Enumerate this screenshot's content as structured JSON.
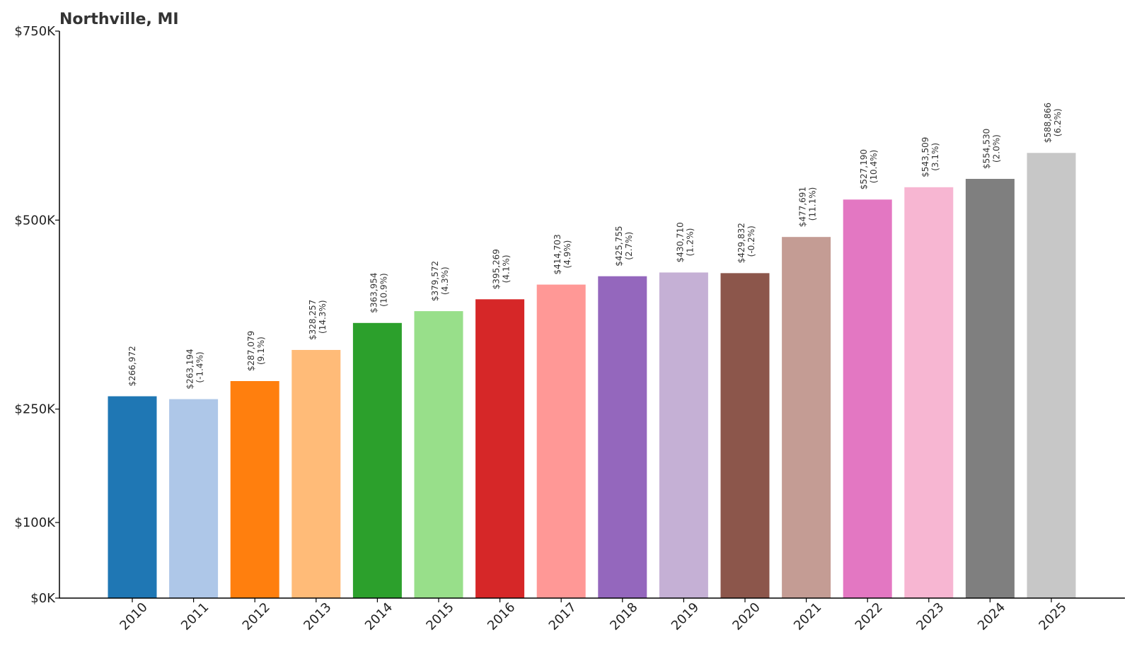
{
  "chart_data": {
    "type": "bar",
    "title": "Northville, MI",
    "xlabel": "",
    "ylabel": "",
    "categories": [
      "2010",
      "2011",
      "2012",
      "2013",
      "2014",
      "2015",
      "2016",
      "2017",
      "2018",
      "2019",
      "2020",
      "2021",
      "2022",
      "2023",
      "2024",
      "2025"
    ],
    "values": [
      266972,
      263194,
      287079,
      328257,
      363954,
      379572,
      395269,
      414703,
      425755,
      430710,
      429832,
      477691,
      527190,
      543509,
      554530,
      588866
    ],
    "value_labels": [
      "$266,972",
      "$263,194",
      "$287,079",
      "$328,257",
      "$363,954",
      "$379,572",
      "$395,269",
      "$414,703",
      "$425,755",
      "$430,710",
      "$429,832",
      "$477,691",
      "$527,190",
      "$543,509",
      "$554,530",
      "$588,866"
    ],
    "change_labels": [
      "",
      "(-1.4%)",
      "(9.1%)",
      "(14.3%)",
      "(10.9%)",
      "(4.3%)",
      "(4.1%)",
      "(4.9%)",
      "(2.7%)",
      "(1.2%)",
      "(-0.2%)",
      "(11.1%)",
      "(10.4%)",
      "(3.1%)",
      "(2.0%)",
      "(6.2%)"
    ],
    "colors": [
      "#1f77b4",
      "#aec7e8",
      "#ff7f0e",
      "#ffbb78",
      "#2ca02c",
      "#98df8a",
      "#d62728",
      "#ff9896",
      "#9467bd",
      "#c5b0d5",
      "#8c564b",
      "#c49c94",
      "#e377c2",
      "#f7b6d2",
      "#7f7f7f",
      "#c7c7c7"
    ],
    "yticks": [
      0,
      100000,
      250000,
      500000,
      750000
    ],
    "ytick_labels": [
      "$0K",
      "$100K",
      "$250K",
      "$500K",
      "$750K"
    ],
    "ylim": [
      0,
      750000
    ],
    "grid": false,
    "legend": "none"
  }
}
